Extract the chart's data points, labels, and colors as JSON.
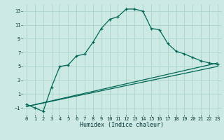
{
  "title": "",
  "xlabel": "Humidex (Indice chaleur)",
  "bg_color": "#cce9e4",
  "grid_color": "#aad4cc",
  "line_color": "#006655",
  "xlim": [
    -0.5,
    23.5
  ],
  "ylim": [
    -2.0,
    14.0
  ],
  "yticks": [
    -1,
    1,
    3,
    5,
    7,
    9,
    11,
    13
  ],
  "xticks": [
    0,
    1,
    2,
    3,
    4,
    5,
    6,
    7,
    8,
    9,
    10,
    11,
    12,
    13,
    14,
    15,
    16,
    17,
    18,
    19,
    20,
    21,
    22,
    23
  ],
  "curve1_x": [
    0,
    1,
    2,
    3,
    4,
    5,
    6,
    7,
    8,
    9,
    10,
    11,
    12,
    13,
    14,
    15,
    16,
    17,
    18,
    19,
    20,
    21,
    22,
    23
  ],
  "curve1_y": [
    -0.5,
    -1.0,
    -1.5,
    2.0,
    5.0,
    5.2,
    6.5,
    6.8,
    8.5,
    10.5,
    11.8,
    12.2,
    13.3,
    13.3,
    13.0,
    10.5,
    10.3,
    8.3,
    7.2,
    6.8,
    6.3,
    5.8,
    5.5,
    5.3
  ],
  "line2_x": [
    0,
    23
  ],
  "line2_y": [
    -0.8,
    5.5
  ],
  "line3_x": [
    0,
    23
  ],
  "line3_y": [
    -0.8,
    5.0
  ],
  "xlabel_fontsize": 6.0,
  "tick_fontsize": 5.0
}
